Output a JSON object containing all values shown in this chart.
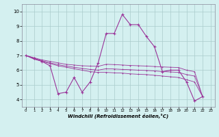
{
  "x": [
    0,
    1,
    2,
    3,
    4,
    5,
    6,
    7,
    8,
    9,
    10,
    11,
    12,
    13,
    14,
    15,
    16,
    17,
    18,
    19,
    20,
    21,
    22,
    23
  ],
  "y_main": [
    7.0,
    6.8,
    6.6,
    6.3,
    4.4,
    4.5,
    5.5,
    4.5,
    5.2,
    6.5,
    8.5,
    8.5,
    9.8,
    9.1,
    9.1,
    8.3,
    7.6,
    5.9,
    6.0,
    6.0,
    5.2,
    3.9,
    4.2,
    null
  ],
  "y_trend1": [
    7.0,
    6.85,
    6.7,
    6.6,
    6.5,
    6.4,
    6.35,
    6.3,
    6.28,
    6.26,
    6.4,
    6.38,
    6.35,
    6.32,
    6.3,
    6.28,
    6.25,
    6.22,
    6.2,
    6.18,
    6.0,
    5.9,
    4.2,
    null
  ],
  "y_trend2": [
    7.0,
    6.8,
    6.65,
    6.5,
    6.38,
    6.28,
    6.2,
    6.12,
    6.05,
    6.0,
    6.1,
    6.08,
    6.05,
    6.03,
    6.0,
    5.98,
    5.95,
    5.9,
    5.88,
    5.85,
    5.7,
    5.6,
    4.2,
    null
  ],
  "y_trend3": [
    7.0,
    6.75,
    6.6,
    6.45,
    6.3,
    6.2,
    6.1,
    6.0,
    5.9,
    5.85,
    5.85,
    5.82,
    5.8,
    5.75,
    5.72,
    5.7,
    5.65,
    5.6,
    5.55,
    5.5,
    5.35,
    5.2,
    4.2,
    null
  ],
  "line_color": "#993399",
  "bg_color": "#d4f0f0",
  "grid_color": "#aacccc",
  "xlabel": "Windchill (Refroidissement éolien,°C)",
  "ylim": [
    3.5,
    10.5
  ],
  "xlim": [
    -0.5,
    23.5
  ],
  "yticks": [
    4,
    5,
    6,
    7,
    8,
    9,
    10
  ],
  "xticks": [
    0,
    1,
    2,
    3,
    4,
    5,
    6,
    7,
    8,
    9,
    10,
    11,
    12,
    13,
    14,
    15,
    16,
    17,
    18,
    19,
    20,
    21,
    22,
    23
  ]
}
